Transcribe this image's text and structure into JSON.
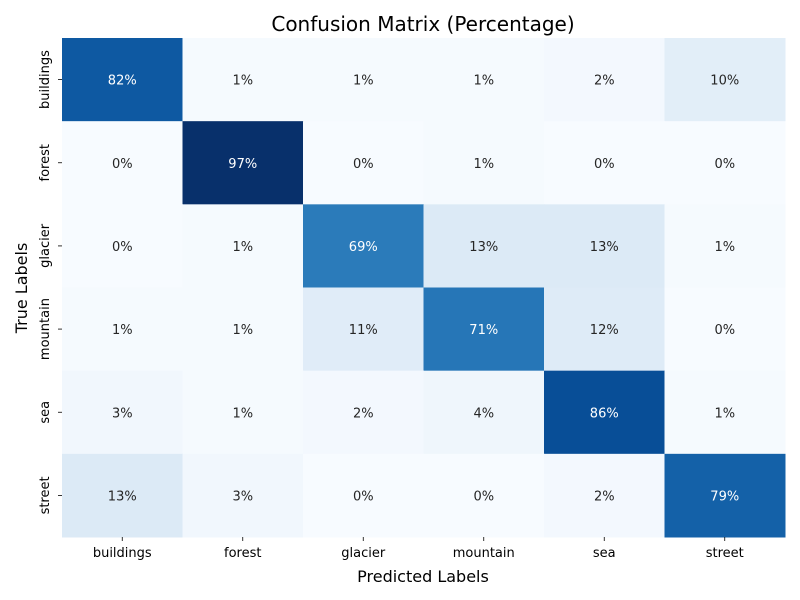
{
  "chart_data": {
    "type": "heatmap",
    "title": "Confusion Matrix (Percentage)",
    "xlabel": "Predicted Labels",
    "ylabel": "True Labels",
    "x_categories": [
      "buildings",
      "forest",
      "glacier",
      "mountain",
      "sea",
      "street"
    ],
    "y_categories": [
      "buildings",
      "forest",
      "glacier",
      "mountain",
      "sea",
      "street"
    ],
    "values": [
      [
        82,
        1,
        1,
        1,
        2,
        10
      ],
      [
        0,
        97,
        0,
        1,
        0,
        0
      ],
      [
        0,
        1,
        69,
        13,
        13,
        1
      ],
      [
        1,
        1,
        11,
        71,
        12,
        0
      ],
      [
        3,
        1,
        2,
        4,
        86,
        1
      ],
      [
        13,
        3,
        0,
        0,
        2,
        79
      ]
    ],
    "value_suffix": "%",
    "colormap": "Blues",
    "vmin": 0,
    "vmax": 97,
    "colorbar": false,
    "grid": false,
    "legend": "none"
  }
}
